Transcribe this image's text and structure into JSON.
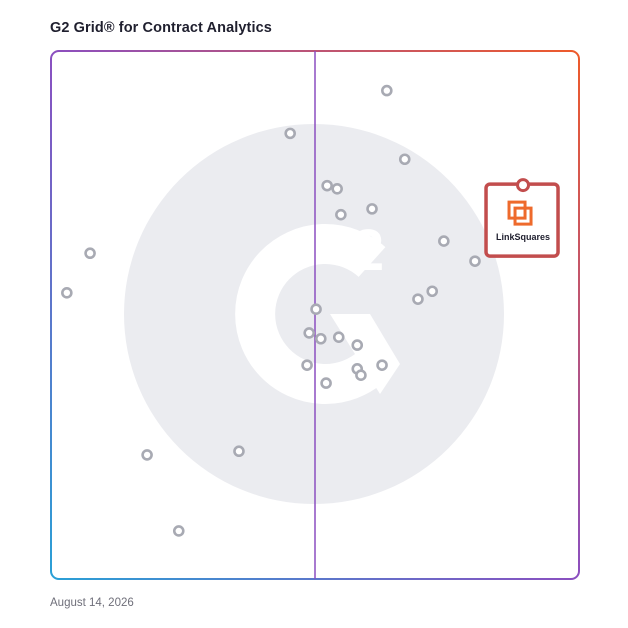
{
  "header": {
    "title": "G2 Grid® for Contract Analytics"
  },
  "footer": {
    "date": "August 14, 2026"
  },
  "colors": {
    "border_top_left": "#6b4fc0",
    "border_top_right": "#ee5a2a",
    "border_bottom_left": "#2aa0d6",
    "border_bottom_right": "#8b3fb8",
    "watermark": "#ebecf0",
    "dot_stroke": "#a8aab3",
    "highlight": "#c24d4d",
    "highlight_logo": "#ee6a2c"
  },
  "chart_data": {
    "type": "scatter",
    "title": "G2 Grid® for Contract Analytics",
    "xlabel": "",
    "ylabel": "",
    "xlim": [
      0,
      100
    ],
    "ylim": [
      0,
      100
    ],
    "grid": "quadrants",
    "points": [
      {
        "x": 63.6,
        "y": 92.5
      },
      {
        "x": 45.3,
        "y": 84.4
      },
      {
        "x": 67.0,
        "y": 79.5
      },
      {
        "x": 52.3,
        "y": 74.5
      },
      {
        "x": 54.2,
        "y": 73.9
      },
      {
        "x": 60.8,
        "y": 70.1
      },
      {
        "x": 54.9,
        "y": 69.0
      },
      {
        "x": 74.4,
        "y": 64.0
      },
      {
        "x": 7.4,
        "y": 61.7
      },
      {
        "x": 80.3,
        "y": 60.2
      },
      {
        "x": 3.0,
        "y": 54.2
      },
      {
        "x": 72.2,
        "y": 54.5
      },
      {
        "x": 69.5,
        "y": 53.0
      },
      {
        "x": 50.2,
        "y": 51.1
      },
      {
        "x": 48.9,
        "y": 46.6
      },
      {
        "x": 51.1,
        "y": 45.5
      },
      {
        "x": 54.5,
        "y": 45.8
      },
      {
        "x": 58.0,
        "y": 44.3
      },
      {
        "x": 48.5,
        "y": 40.5
      },
      {
        "x": 62.7,
        "y": 40.5
      },
      {
        "x": 58.0,
        "y": 39.8
      },
      {
        "x": 58.7,
        "y": 38.6
      },
      {
        "x": 52.1,
        "y": 37.1
      },
      {
        "x": 35.6,
        "y": 24.2
      },
      {
        "x": 18.2,
        "y": 23.5
      },
      {
        "x": 24.2,
        "y": 9.1
      }
    ],
    "highlight": {
      "name": "LinkSquares",
      "x": 89.4,
      "y": 74.6
    }
  }
}
